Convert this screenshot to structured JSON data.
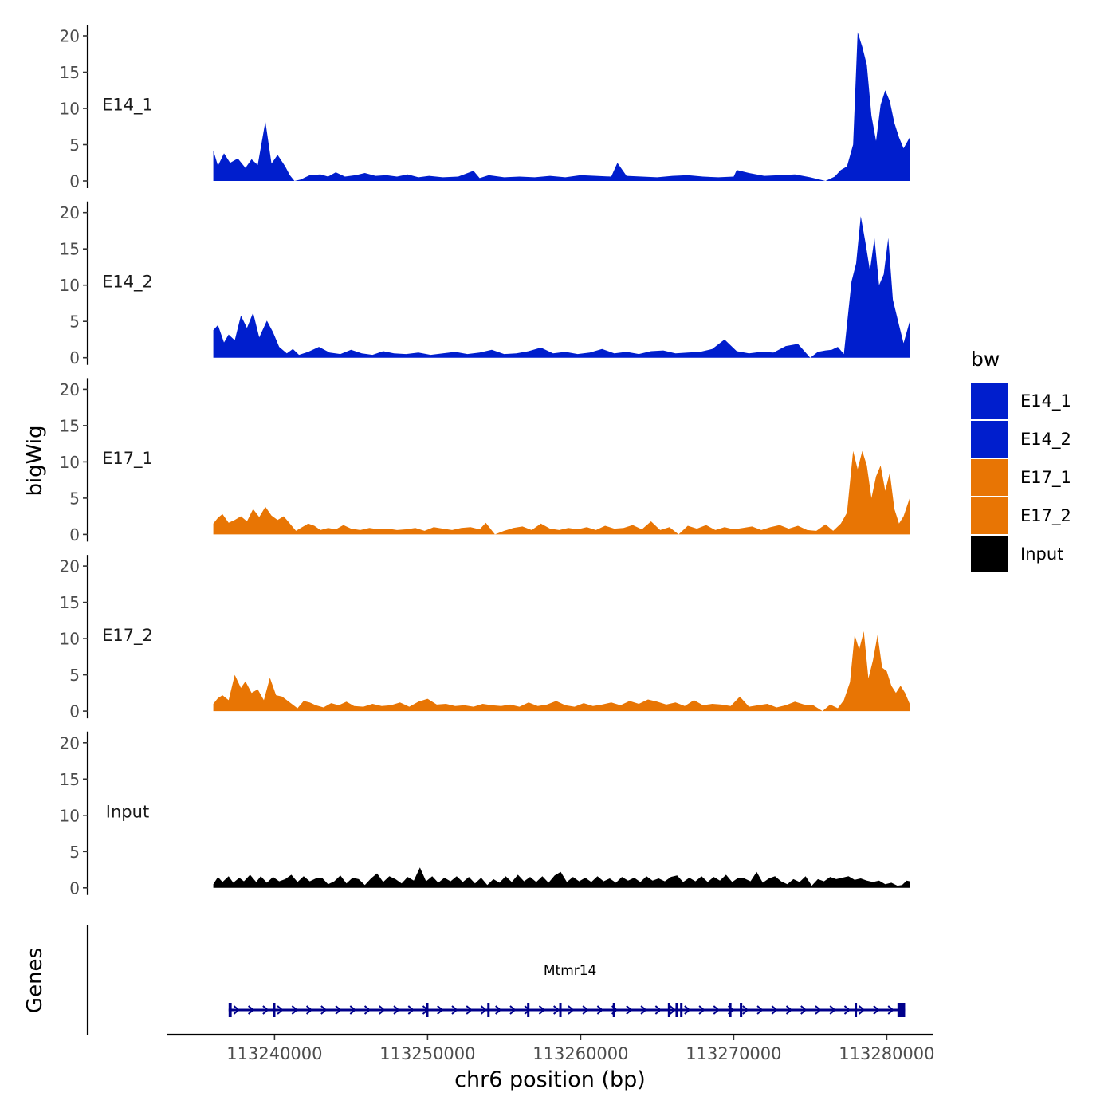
{
  "chart_data": {
    "type": "area",
    "title": "",
    "ylabel": "bigWig",
    "xlabel": "chr6 position (bp)",
    "xlim": [
      113233000,
      113283000
    ],
    "x_data_range": [
      113236000,
      113281500
    ],
    "ylim": [
      0,
      20
    ],
    "y_ticks": [
      "0",
      "5",
      "10",
      "15",
      "20"
    ],
    "x_ticks": [
      {
        "value": 113240000,
        "label": "113240000"
      },
      {
        "value": 113250000,
        "label": "113250000"
      },
      {
        "value": 113260000,
        "label": "113260000"
      },
      {
        "value": 113270000,
        "label": "113270000"
      },
      {
        "value": 113280000,
        "label": "113280000"
      }
    ],
    "legend": {
      "title": "bw",
      "placement": "right",
      "entries": [
        {
          "label": "E14_1",
          "color": "#001ECD"
        },
        {
          "label": "E14_2",
          "color": "#001ECD"
        },
        {
          "label": "E17_1",
          "color": "#E87504"
        },
        {
          "label": "E17_2",
          "color": "#E87504"
        },
        {
          "label": "Input",
          "color": "#000000"
        }
      ]
    },
    "series": [
      {
        "name": "E14_1",
        "color": "#001ECD",
        "x": [
          113236000,
          113236300,
          113236700,
          113237100,
          113237600,
          113238100,
          113238500,
          113238900,
          113239400,
          113239800,
          113240200,
          113240700,
          113241000,
          113241300,
          113241700,
          113242300,
          113243000,
          113243500,
          113244000,
          113244600,
          113245300,
          113245900,
          113246600,
          113247300,
          113248000,
          113248700,
          113249400,
          113250100,
          113251000,
          113252000,
          113253000,
          113253400,
          113254000,
          113255000,
          113256000,
          113257000,
          113258000,
          113259000,
          113260000,
          113261000,
          113262000,
          113262400,
          113263000,
          113264000,
          113265000,
          113266000,
          113267000,
          113268000,
          113269000,
          113270000,
          113270200,
          113271000,
          113272000,
          113273000,
          113274000,
          113275000,
          113276000,
          113276600,
          113277000,
          113277400,
          113277800,
          113278100,
          113278400,
          113278700,
          113279000,
          113279300,
          113279600,
          113279900,
          113280200,
          113280500,
          113280800,
          113281100,
          113281500
        ],
        "y": [
          4.2,
          2.1,
          3.8,
          2.5,
          3.1,
          1.8,
          3.0,
          2.2,
          8.2,
          2.4,
          3.6,
          2.0,
          0.8,
          0.0,
          0.2,
          0.8,
          0.9,
          0.6,
          1.2,
          0.6,
          0.8,
          1.1,
          0.7,
          0.8,
          0.6,
          0.9,
          0.5,
          0.7,
          0.5,
          0.6,
          1.4,
          0.4,
          0.8,
          0.5,
          0.6,
          0.5,
          0.7,
          0.5,
          0.8,
          0.7,
          0.6,
          2.5,
          0.7,
          0.6,
          0.5,
          0.7,
          0.8,
          0.6,
          0.5,
          0.6,
          1.5,
          1.1,
          0.7,
          0.8,
          0.9,
          0.5,
          0.0,
          0.6,
          1.5,
          2.0,
          5.0,
          20.5,
          18.5,
          16.0,
          9.0,
          5.5,
          10.5,
          12.5,
          11.0,
          8.0,
          6.0,
          4.5,
          6.0
        ]
      },
      {
        "name": "E14_2",
        "color": "#001ECD",
        "x": [
          113236000,
          113236300,
          113236700,
          113237000,
          113237400,
          113237800,
          113238200,
          113238600,
          113239000,
          113239500,
          113239900,
          113240300,
          113240800,
          113241200,
          113241600,
          113242200,
          113242900,
          113243600,
          113244300,
          113245000,
          113245700,
          113246400,
          113247100,
          113247800,
          113248600,
          113249400,
          113250200,
          113251000,
          113251800,
          113252600,
          113253400,
          113254200,
          113255000,
          113255800,
          113256600,
          113257400,
          113258200,
          113259000,
          113259800,
          113260600,
          113261400,
          113262200,
          113263000,
          113263800,
          113264600,
          113265400,
          113266200,
          113267000,
          113267800,
          113268600,
          113269400,
          113270200,
          113271000,
          113271800,
          113272600,
          113273400,
          113274200,
          113275000,
          113275500,
          113276000,
          113276400,
          113276800,
          113277200,
          113277700,
          113278000,
          113278300,
          113278600,
          113278900,
          113279200,
          113279500,
          113279800,
          113280100,
          113280400,
          113280800,
          113281100,
          113281500
        ],
        "y": [
          3.8,
          4.5,
          2.1,
          3.2,
          2.4,
          5.8,
          4.1,
          6.2,
          2.8,
          5.1,
          3.5,
          1.5,
          0.6,
          1.2,
          0.4,
          0.8,
          1.5,
          0.7,
          0.5,
          1.1,
          0.6,
          0.4,
          0.9,
          0.6,
          0.5,
          0.7,
          0.4,
          0.6,
          0.8,
          0.5,
          0.7,
          1.1,
          0.5,
          0.6,
          0.9,
          1.4,
          0.6,
          0.8,
          0.5,
          0.7,
          1.2,
          0.6,
          0.8,
          0.5,
          0.9,
          1.0,
          0.6,
          0.7,
          0.8,
          1.2,
          2.5,
          0.9,
          0.6,
          0.8,
          0.7,
          1.6,
          1.9,
          0.0,
          0.8,
          1.0,
          1.1,
          1.5,
          0.5,
          10.5,
          13.0,
          19.5,
          16.0,
          12.0,
          16.5,
          10.0,
          11.5,
          16.5,
          8.0,
          4.5,
          2.0,
          5.0
        ]
      },
      {
        "name": "E17_1",
        "color": "#E87504",
        "x": [
          113236000,
          113236300,
          113236600,
          113237000,
          113237400,
          113237800,
          113238200,
          113238600,
          113239000,
          113239400,
          113239800,
          113240200,
          113240600,
          113241000,
          113241400,
          113241800,
          113242200,
          113242600,
          113243000,
          113243500,
          113244000,
          113244500,
          113245000,
          113245600,
          113246200,
          113246800,
          113247400,
          113248000,
          113248600,
          113249200,
          113249800,
          113250400,
          113251000,
          113251600,
          113252200,
          113252800,
          113253400,
          113253800,
          113254400,
          113255000,
          113255600,
          113256200,
          113256800,
          113257400,
          113258000,
          113258600,
          113259200,
          113259800,
          113260400,
          113261000,
          113261600,
          113262200,
          113262800,
          113263400,
          113264000,
          113264600,
          113265200,
          113265800,
          113266400,
          113267000,
          113267600,
          113268200,
          113268800,
          113269400,
          113270000,
          113270600,
          113271200,
          113271800,
          113272400,
          113273000,
          113273600,
          113274200,
          113274800,
          113275400,
          113276000,
          113276500,
          113277000,
          113277400,
          113277800,
          113278100,
          113278400,
          113278700,
          113279000,
          113279300,
          113279600,
          113279900,
          113280200,
          113280500,
          113280800,
          113281100,
          113281500
        ],
        "y": [
          1.5,
          2.3,
          2.8,
          1.6,
          2.0,
          2.5,
          1.8,
          3.5,
          2.4,
          3.8,
          2.6,
          2.0,
          2.5,
          1.5,
          0.5,
          1.0,
          1.5,
          1.2,
          0.6,
          0.9,
          0.7,
          1.3,
          0.8,
          0.6,
          0.9,
          0.7,
          0.8,
          0.6,
          0.7,
          0.9,
          0.5,
          1.0,
          0.8,
          0.6,
          0.9,
          1.0,
          0.7,
          1.6,
          0.0,
          0.5,
          0.9,
          1.1,
          0.6,
          1.5,
          0.8,
          0.6,
          0.9,
          0.7,
          1.0,
          0.6,
          1.2,
          0.8,
          0.9,
          1.3,
          0.7,
          1.8,
          0.6,
          1.0,
          0.0,
          1.2,
          0.8,
          1.3,
          0.6,
          1.0,
          0.7,
          0.9,
          1.1,
          0.6,
          1.0,
          1.3,
          0.8,
          1.2,
          0.6,
          0.5,
          1.4,
          0.5,
          1.5,
          3.0,
          11.5,
          9.0,
          11.5,
          9.5,
          5.0,
          8.0,
          9.5,
          6.0,
          8.5,
          3.5,
          1.5,
          2.5,
          5.0
        ]
      },
      {
        "name": "E17_2",
        "color": "#E87504",
        "x": [
          113236000,
          113236300,
          113236600,
          113237000,
          113237400,
          113237800,
          113238100,
          113238500,
          113238900,
          113239300,
          113239700,
          113240100,
          113240500,
          113241000,
          113241500,
          113241900,
          113242300,
          113242700,
          113243200,
          113243700,
          113244200,
          113244700,
          113245200,
          113245800,
          113246400,
          113247000,
          113247600,
          113248200,
          113248800,
          113249400,
          113250000,
          113250600,
          113251200,
          113251800,
          113252400,
          113253000,
          113253600,
          113254200,
          113254800,
          113255400,
          113256000,
          113256600,
          113257200,
          113257800,
          113258400,
          113259000,
          113259600,
          113260200,
          113260800,
          113261400,
          113262000,
          113262600,
          113263200,
          113263800,
          113264400,
          113265000,
          113265600,
          113266200,
          113266800,
          113267400,
          113268000,
          113268600,
          113269200,
          113269800,
          113270400,
          113271000,
          113271600,
          113272200,
          113272800,
          113273400,
          113274000,
          113274600,
          113275200,
          113275800,
          113276300,
          113276800,
          113277200,
          113277600,
          113277900,
          113278200,
          113278500,
          113278800,
          113279100,
          113279400,
          113279700,
          113280000,
          113280300,
          113280600,
          113280900,
          113281200,
          113281500
        ],
        "y": [
          1.0,
          1.8,
          2.2,
          1.5,
          5.0,
          3.2,
          4.1,
          2.5,
          3.0,
          1.5,
          4.6,
          2.2,
          2.0,
          1.2,
          0.4,
          1.4,
          1.2,
          0.8,
          0.5,
          1.1,
          0.8,
          1.3,
          0.7,
          0.6,
          1.0,
          0.7,
          0.8,
          1.2,
          0.6,
          1.3,
          1.7,
          0.9,
          1.0,
          0.7,
          0.8,
          0.6,
          1.0,
          0.8,
          0.7,
          0.9,
          0.6,
          1.2,
          0.7,
          0.9,
          1.4,
          0.8,
          0.6,
          1.1,
          0.7,
          0.9,
          1.2,
          0.8,
          1.4,
          1.0,
          1.6,
          1.3,
          0.9,
          1.2,
          0.7,
          1.5,
          0.8,
          1.0,
          0.9,
          0.7,
          2.0,
          0.6,
          0.8,
          1.0,
          0.5,
          0.8,
          1.3,
          0.9,
          0.8,
          0.0,
          0.9,
          0.4,
          1.5,
          4.0,
          10.5,
          8.5,
          11.0,
          4.5,
          7.0,
          10.5,
          6.0,
          5.5,
          3.5,
          2.5,
          3.5,
          2.5,
          1.0
        ]
      },
      {
        "name": "Input",
        "color": "#000000",
        "x": [
          113236000,
          113236300,
          113236600,
          113237000,
          113237300,
          113237700,
          113238000,
          113238400,
          113238800,
          113239100,
          113239500,
          113239900,
          113240300,
          113240700,
          113241100,
          113241500,
          113241900,
          113242300,
          113242700,
          113243100,
          113243500,
          113243900,
          113244300,
          113244700,
          113245100,
          113245500,
          113245900,
          113246300,
          113246700,
          113247100,
          113247500,
          113247900,
          113248300,
          113248700,
          113249100,
          113249500,
          113249900,
          113250300,
          113250700,
          113251100,
          113251500,
          113251900,
          113252300,
          113252700,
          113253100,
          113253500,
          113253900,
          113254300,
          113254700,
          113255100,
          113255500,
          113255900,
          113256300,
          113256700,
          113257100,
          113257500,
          113257900,
          113258300,
          113258700,
          113259100,
          113259500,
          113259900,
          113260300,
          113260700,
          113261100,
          113261500,
          113261900,
          113262300,
          113262700,
          113263100,
          113263500,
          113263900,
          113264300,
          113264700,
          113265100,
          113265500,
          113265900,
          113266300,
          113266700,
          113267100,
          113267500,
          113267900,
          113268300,
          113268700,
          113269100,
          113269500,
          113269900,
          113270300,
          113270700,
          113271100,
          113271500,
          113271900,
          113272300,
          113272700,
          113273100,
          113273500,
          113273900,
          113274300,
          113274700,
          113275100,
          113275500,
          113275900,
          113276300,
          113276700,
          113277100,
          113277500,
          113277900,
          113278300,
          113278700,
          113279100,
          113279500,
          113279900,
          113280300,
          113280700,
          113281000,
          113281300,
          113281500
        ],
        "y": [
          0.5,
          1.5,
          0.8,
          1.6,
          0.7,
          1.4,
          0.9,
          1.8,
          0.8,
          1.6,
          0.7,
          1.5,
          0.9,
          1.2,
          1.8,
          0.8,
          1.6,
          0.9,
          1.3,
          1.4,
          0.5,
          0.9,
          1.7,
          0.6,
          1.4,
          1.2,
          0.4,
          1.3,
          2.0,
          0.8,
          1.6,
          1.2,
          0.6,
          1.5,
          1.0,
          2.8,
          0.9,
          1.6,
          0.7,
          1.4,
          0.9,
          1.6,
          0.8,
          1.5,
          0.6,
          1.4,
          0.4,
          1.2,
          0.7,
          1.6,
          0.8,
          1.8,
          0.9,
          1.5,
          0.8,
          1.6,
          0.7,
          1.7,
          2.2,
          0.8,
          1.5,
          0.9,
          1.4,
          0.8,
          1.6,
          0.9,
          1.3,
          0.7,
          1.5,
          1.0,
          1.4,
          0.8,
          1.6,
          1.0,
          1.3,
          0.9,
          1.5,
          1.7,
          0.8,
          1.4,
          0.9,
          1.6,
          0.8,
          1.5,
          1.0,
          1.8,
          0.8,
          1.4,
          1.3,
          0.9,
          2.2,
          0.7,
          1.3,
          1.6,
          0.9,
          0.5,
          1.2,
          0.8,
          1.6,
          0.3,
          1.2,
          0.9,
          1.5,
          1.2,
          1.4,
          1.6,
          1.1,
          1.3,
          1.0,
          0.8,
          1.0,
          0.5,
          0.7,
          0.3,
          0.4,
          1.0,
          0.9
        ]
      }
    ],
    "genes_track": {
      "ylabel": "Genes",
      "gene_name": "Mtmr14",
      "strand": "+",
      "start": 113237000,
      "end": 113281200,
      "exons": [
        [
          113237000,
          113237200
        ],
        [
          113239900,
          113240000
        ],
        [
          113249900,
          113250000
        ],
        [
          113253900,
          113253980
        ],
        [
          113256500,
          113256600
        ],
        [
          113258600,
          113258700
        ],
        [
          113262100,
          113262200
        ],
        [
          113265700,
          113265780
        ],
        [
          113266200,
          113266280
        ],
        [
          113266500,
          113266580
        ],
        [
          113269700,
          113269800
        ],
        [
          113270400,
          113270560
        ],
        [
          113277900,
          113278000
        ],
        [
          113280700,
          113281200
        ]
      ]
    }
  }
}
